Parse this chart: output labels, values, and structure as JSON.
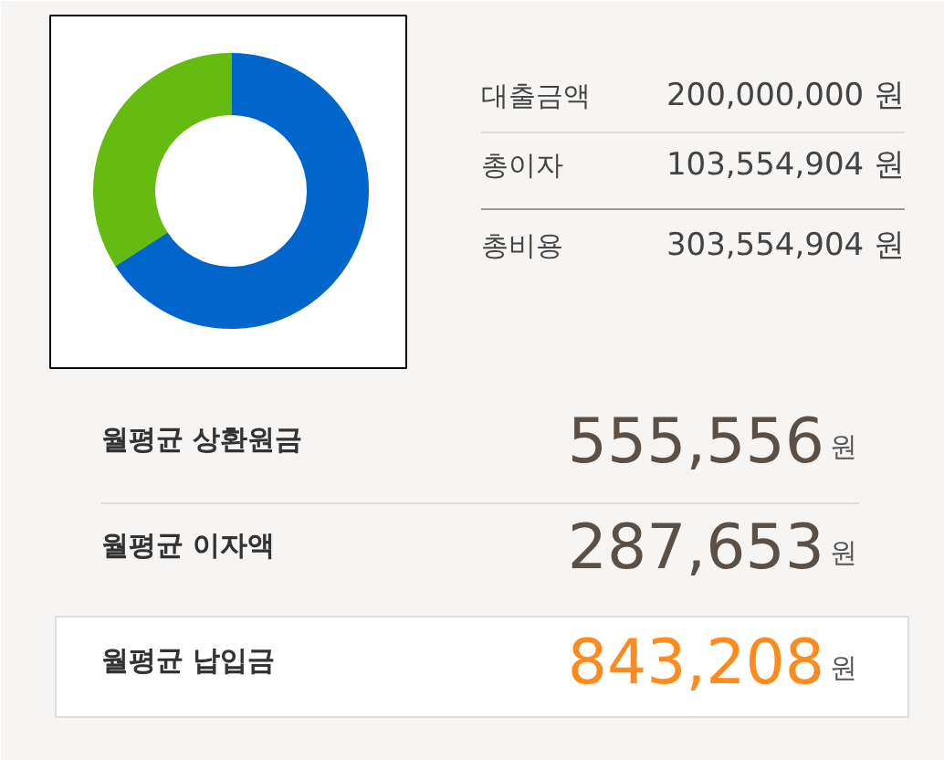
{
  "chart_data": [
    {
      "type": "donut",
      "categories": [
        null,
        null
      ],
      "values": [
        65.9,
        34.1
      ],
      "colors": [
        "#0066cc",
        "#66bb11"
      ],
      "annotations": [
        "대출금액",
        "200,000,000 원",
        "총이자",
        "103,554,904 원",
        "총비용",
        "303,554,904 원"
      ]
    },
    {
      "type": "other",
      "annotations": [
        "월평균 상환원금",
        "555,556",
        "원",
        "월평균 이자액",
        "287,653",
        "원",
        "월평균 납입금",
        "843,208",
        "원"
      ]
    }
  ]
}
